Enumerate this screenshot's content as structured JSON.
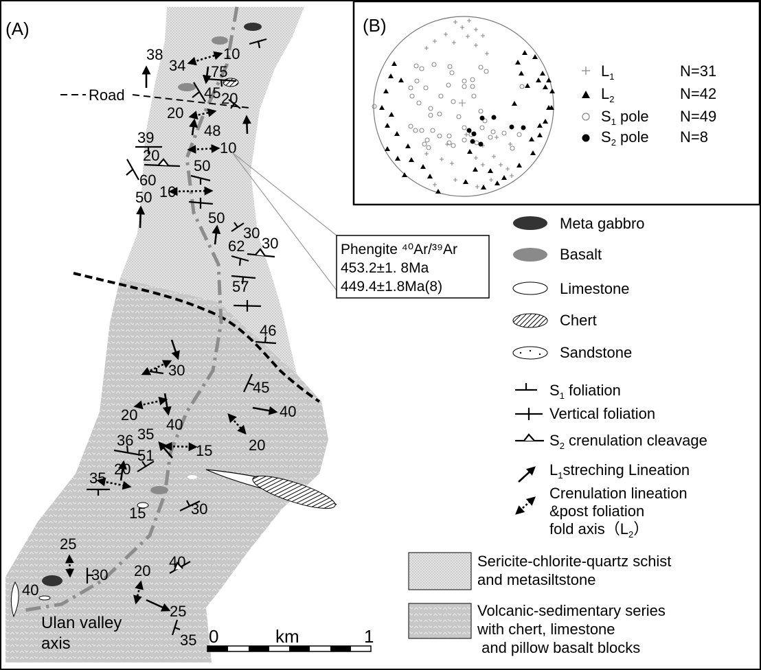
{
  "panel_a": {
    "label": "(A)",
    "road_label": "Road",
    "valley_label_line1": "Ulan valley",
    "valley_label_line2": "axis",
    "geochron": {
      "line1": "Phengite ⁴⁰Ar/³⁹Ar",
      "line2": "453.2±1. 8Ma",
      "line3": "449.4±1.8Ma(8)"
    },
    "measurements": {
      "m38": "38",
      "m34": "34",
      "m10a": "10",
      "m75": "75",
      "m45a": "45",
      "m20a": "20",
      "m20b": "20",
      "m48": "48",
      "m10b": "10",
      "m39": "39",
      "m20c": "20",
      "m50a": "50",
      "m60": "60",
      "m10c": "10",
      "m50b": "50",
      "m50c": "50",
      "m30a": "30",
      "m62": "62",
      "m30b": "30",
      "m57": "57",
      "m46": "46",
      "m30c": "30",
      "m45b": "45",
      "m40a": "40",
      "m20d": "20",
      "m20e": "20",
      "m40b": "40",
      "m36": "36",
      "m35a": "35",
      "m15a": "15",
      "m51": "51",
      "m35b": "35",
      "m20f": "20",
      "m30d": "30",
      "m15b": "15",
      "m25a": "25",
      "m30e": "30",
      "m20g": "20",
      "m40c": "40",
      "m25b": "25",
      "m40d": "40",
      "m35c": "35"
    },
    "scale": {
      "zero": "0",
      "unit": "km",
      "one": "1"
    }
  },
  "panel_b": {
    "label": "(B)",
    "legend": [
      {
        "symbol": "+",
        "name": "L",
        "sub": "1",
        "count": "N=31"
      },
      {
        "symbol": "▲",
        "name": "L",
        "sub": "2",
        "count": "N=42"
      },
      {
        "symbol": "○",
        "name": "S",
        "sub": "1",
        "suffix": " pole",
        "count": "N=49"
      },
      {
        "symbol": "●",
        "name": "S",
        "sub": "2",
        "suffix": " pole",
        "count": "N=8"
      }
    ]
  },
  "legend": {
    "meta_gabbro": "Meta gabbro",
    "basalt": "Basalt",
    "limestone": "Limestone",
    "chert": "Chert",
    "sandstone": "Sandstone",
    "s1_foliation": {
      "pre": "S",
      "sub": "1",
      "post": " foliation"
    },
    "vertical_foliation": "Vertical foliation",
    "s2_cleavage": {
      "pre": "S",
      "sub": "2",
      "post": " crenulation cleavage"
    },
    "l1_lineation": {
      "pre": "L",
      "sub": "1",
      "post": "streching Lineation"
    },
    "crenulation_line1": "Crenulation lineation",
    "crenulation_line2": "&post foliation",
    "crenulation_line3": {
      "pre": "fold axis（L",
      "sub": "2",
      "post": "）"
    },
    "schist_line1": "Sericite-chlorite-quartz schist",
    "schist_line2": "and metasiltstone",
    "volcanic_line1": "Volcanic-sedimentary series",
    "volcanic_line2": "with chert, limestone",
    "volcanic_line3": " and pillow basalt blocks"
  },
  "colors": {
    "schist_unit": "#e2e2e2",
    "volcanic_unit": "#c6c6c6",
    "meta_gabbro": "#333333",
    "basalt": "#8a8a8a",
    "valley_axis": "#8c8c8c"
  }
}
